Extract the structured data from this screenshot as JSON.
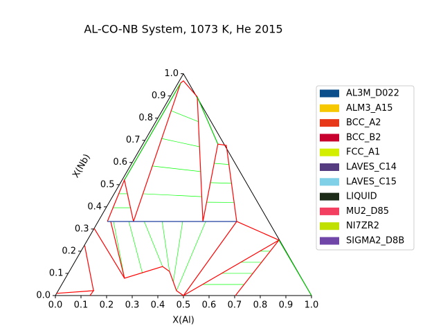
{
  "chart_data": {
    "type": "ternary",
    "title": "AL-CO-NB System, 1073 K, He 2015",
    "xlabel": "X(Al)",
    "ylabel": "X(Nb)",
    "xlim": [
      0,
      1
    ],
    "ylim": [
      0,
      1
    ],
    "xticks": [
      {
        "value": 0,
        "label": "0.0"
      },
      0.1,
      0.2,
      0.3,
      0.4,
      0.5,
      0.6,
      0.7,
      0.8,
      0.9,
      {
        "value": 1,
        "label": "1.0"
      }
    ],
    "yticks": [
      {
        "value": 0,
        "label": "0.0"
      },
      0.1,
      0.2,
      0.3,
      0.4,
      0.5,
      0.6,
      0.7,
      0.8,
      0.9,
      {
        "value": 1,
        "label": "1.0"
      }
    ],
    "series": [
      {
        "name": "AL3M_D022",
        "color": "#0a4f8c"
      },
      {
        "name": "ALM3_A15",
        "color": "#f5c800"
      },
      {
        "name": "BCC_A2",
        "color": "#e8381a"
      },
      {
        "name": "BCC_B2",
        "color": "#c8002e"
      },
      {
        "name": "FCC_A1",
        "color": "#d4ee00"
      },
      {
        "name": "LAVES_C14",
        "color": "#553b80"
      },
      {
        "name": "LAVES_C15",
        "color": "#80d0e8"
      },
      {
        "name": "LIQUID",
        "color": "#1c2a18"
      },
      {
        "name": "MU2_D85",
        "color": "#f44060"
      },
      {
        "name": "NI7ZR2",
        "color": "#bfe000"
      },
      {
        "name": "SIGMA2_D8B",
        "color": "#7047a8"
      }
    ],
    "boundaries": [
      {
        "color": "#ff0000",
        "a": [
          0.138,
          0.01,
          0.016,
          0.106,
          0.409
        ],
        "b": [
          0.334,
          0.958,
          0.968,
          0.896,
          0.334
        ]
      },
      {
        "color": "#ff0000",
        "a": [
          0.409,
          0.293,
          0.329,
          0.541
        ],
        "b": [
          0.334,
          0.683,
          0.677,
          0.334
        ]
      },
      {
        "color": "#00cc00",
        "a": [
          0.106,
          0.293
        ],
        "b": [
          0.896,
          0.683
        ]
      },
      {
        "color": "#00cc00",
        "a": [
          0.01,
          0.009
        ],
        "b": [
          0.958,
          0.521
        ]
      },
      {
        "color": "#ff0000",
        "a": [
          0.036,
          0.009,
          0.138
        ],
        "b": [
          0.334,
          0.521,
          0.334
        ]
      },
      {
        "color": "#ff0000",
        "a": [
          0.049,
          0.231,
          0.353,
          0.391,
          0.462,
          0.5,
          0.541
        ],
        "b": [
          0.334,
          0.078,
          0.131,
          0.109,
          0.022,
          0,
          0.334
        ]
      },
      {
        "color": "#1f3e9f",
        "a": [
          0.036,
          0.541
        ],
        "b": [
          0.334,
          0.334
        ]
      },
      {
        "color": "#ff0000",
        "a": [
          0.5,
          0.748,
          0.703
        ],
        "b": [
          0,
          0.25,
          0
        ]
      },
      {
        "color": "#ff0000",
        "a": [
          0.541,
          0.748
        ],
        "b": [
          0.334,
          0.25
        ]
      },
      {
        "color": "#ff0000",
        "a": [
          0,
          0.231
        ],
        "b": [
          0.303,
          0.078
        ]
      },
      {
        "color": "#ff0000",
        "a": [
          0.002,
          0.138
        ],
        "b": [
          0.225,
          0.022
        ]
      },
      {
        "color": "#ff0000",
        "a": [
          0,
          0.138,
          0.135
        ],
        "b": [
          0.01,
          0.022,
          0
        ]
      },
      {
        "color": "#00cc00",
        "a": [
          0.748,
          1
        ],
        "b": [
          0.25,
          0
        ]
      }
    ],
    "tielines": {
      "color": "#00ff00",
      "from_a": [
        0.036,
        0.061,
        0.087,
        0.112,
        0.38,
        0.351,
        0.322,
        0.018,
        0.027,
        0.06,
        0.12,
        0.18,
        0.25,
        0.33,
        0.42,
        0.55,
        0.6,
        0.65,
        0.7
      ],
      "from_b": [
        0.833,
        0.708,
        0.584,
        0.459,
        0.421,
        0.509,
        0.596,
        0.459,
        0.396,
        0.334,
        0.334,
        0.334,
        0.334,
        0.334,
        0.334,
        0.05,
        0.1,
        0.15,
        0.2
      ],
      "to_a": [
        0.167,
        0.227,
        0.288,
        0.348,
        0.488,
        0.435,
        0.382,
        0.052,
        0.095,
        0.231,
        0.29,
        0.353,
        0.391,
        0.43,
        0.462,
        0.712,
        0.721,
        0.73,
        0.739
      ],
      "to_b": [
        0.784,
        0.671,
        0.559,
        0.446,
        0.42,
        0.506,
        0.591,
        0.459,
        0.396,
        0.078,
        0.1,
        0.131,
        0.109,
        0.06,
        0.022,
        0.05,
        0.1,
        0.15,
        0.2
      ]
    }
  }
}
